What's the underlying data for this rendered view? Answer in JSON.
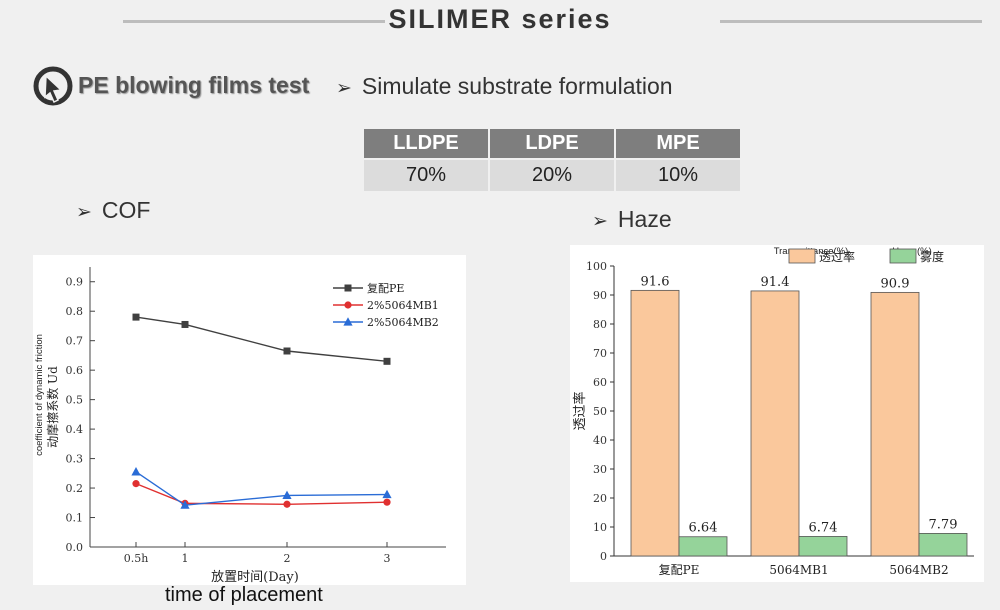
{
  "header": {
    "title": "SILIMER series"
  },
  "section": {
    "title": "PE blowing films test",
    "bullet": "Simulate substrate formulation",
    "logo_icon": "cursor-circle-icon"
  },
  "formulation_table": {
    "headers": [
      "LLDPE",
      "LDPE",
      "MPE"
    ],
    "values": [
      "70%",
      "20%",
      "10%"
    ]
  },
  "cof": {
    "bullet": "COF",
    "extra_label": "time of placement"
  },
  "haze": {
    "bullet": "Haze"
  },
  "chart_data": [
    {
      "type": "line",
      "xlabel": "放置时间(Day)",
      "ylabel": "动摩擦系数 Ud",
      "ylabel_en": "coefficient of dynamic friction",
      "categories": [
        "0.5h",
        "1",
        "2",
        "3"
      ],
      "ylim": [
        0.0,
        0.95
      ],
      "yticks": [
        "0.0",
        "0.1",
        "0.2",
        "0.3",
        "0.4",
        "0.5",
        "0.6",
        "0.7",
        "0.8",
        "0.9"
      ],
      "legend_position": "top-right",
      "series": [
        {
          "name": "复配PE",
          "marker": "square",
          "color": "#404040",
          "values": [
            0.78,
            0.755,
            0.665,
            0.63
          ]
        },
        {
          "name": "2%5064MB1",
          "marker": "circle",
          "color": "#e03030",
          "values": [
            0.215,
            0.148,
            0.145,
            0.152
          ]
        },
        {
          "name": "2%5064MB2",
          "marker": "triangle",
          "color": "#2a6cd6",
          "values": [
            0.255,
            0.142,
            0.175,
            0.178
          ]
        }
      ]
    },
    {
      "type": "bar",
      "ylabel": "透过率",
      "categories": [
        "复配PE",
        "5064MB1",
        "5064MB2"
      ],
      "ylim": [
        0,
        100
      ],
      "yticks": [
        "0",
        "10",
        "20",
        "30",
        "40",
        "50",
        "60",
        "70",
        "80",
        "90",
        "100"
      ],
      "legend_position": "top",
      "series": [
        {
          "name": "透过率",
          "name_en": "Transmittance(%)",
          "color": "#fac89c",
          "values": [
            91.6,
            91.4,
            90.9
          ],
          "labels": [
            "91.6",
            "91.4",
            "90.9"
          ]
        },
        {
          "name": "雾度",
          "name_en": "Haze (%)",
          "color": "#95d39a",
          "values": [
            6.64,
            6.74,
            7.79
          ],
          "labels": [
            "6.64",
            "6.74",
            "7.79"
          ]
        }
      ]
    }
  ]
}
